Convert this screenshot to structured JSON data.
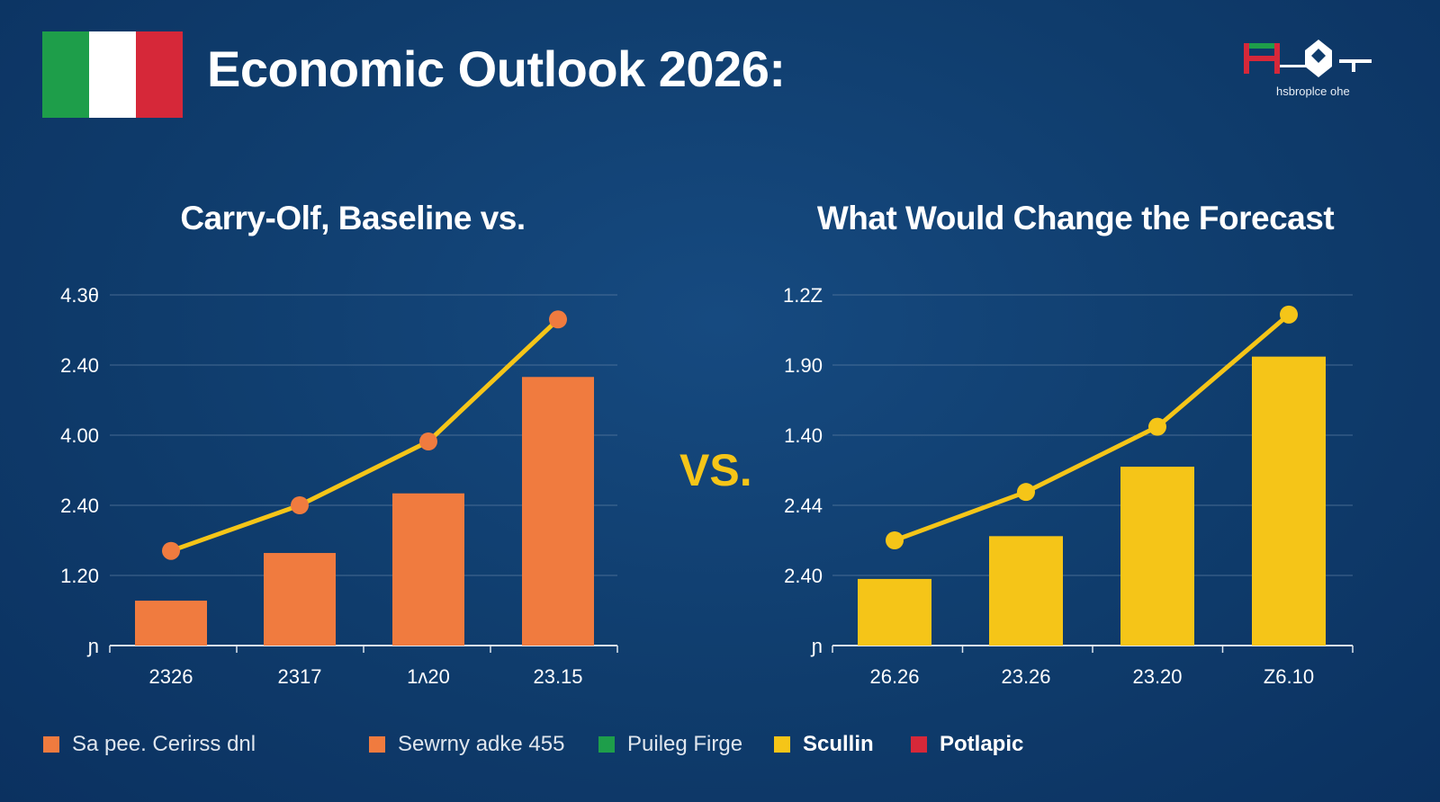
{
  "title": "Economic Outlook 2026:",
  "logo": {
    "text": "hsbroplce ohe",
    "colors": [
      "#1e9e4a",
      "#d62839",
      "#ffffff"
    ]
  },
  "flag_colors": [
    "#1e9e4a",
    "#ffffff",
    "#d62839"
  ],
  "vs_label": "VS.",
  "colors": {
    "background": "#0f3c6c",
    "orange": "#f07b3f",
    "yellow": "#f5c518",
    "line": "#f5c518",
    "grid": "#5f7fa3"
  },
  "chart_data": [
    {
      "type": "bar",
      "title": "Carry-Olf, Baseline vs.",
      "categories": [
        "2326",
        "2317",
        "1ᴧ20",
        "23.15"
      ],
      "y_tick_labels": [
        "ɲ",
        "1.20",
        "2.40",
        "4.00",
        "2.40",
        "4.3θ"
      ],
      "ylim": [
        0,
        5
      ],
      "grid": true,
      "bar_color": "#f07b3f",
      "values": [
        0.64,
        1.32,
        2.17,
        3.83
      ],
      "line_values": [
        1.35,
        2.0,
        2.91,
        4.65
      ]
    },
    {
      "type": "bar",
      "title": "What Would Change the Forecast",
      "categories": [
        "26.26",
        "23.26",
        "23.20",
        "Z6.10"
      ],
      "y_tick_labels": [
        "ɲ",
        "2.40",
        "2.44",
        "1.40",
        "1.90",
        "1.2Z"
      ],
      "ylim": [
        0,
        5
      ],
      "grid": true,
      "bar_color": "#f5c518",
      "values": [
        0.95,
        1.56,
        2.55,
        4.12
      ],
      "line_values": [
        1.5,
        2.19,
        3.12,
        4.72
      ]
    }
  ],
  "legend": [
    {
      "label": "Sa pee. Cerirss dnl",
      "color": "#f07b3f",
      "bold": false
    },
    {
      "label": "Sewrny adke 455",
      "color": "#f07b3f",
      "bold": false
    },
    {
      "label": "Puileg Firge",
      "color": "#1e9e4a",
      "bold": false
    },
    {
      "label": "Scullin",
      "color": "#f5c518",
      "bold": true
    },
    {
      "label": "Potlapic",
      "color": "#d62839",
      "bold": true
    }
  ]
}
